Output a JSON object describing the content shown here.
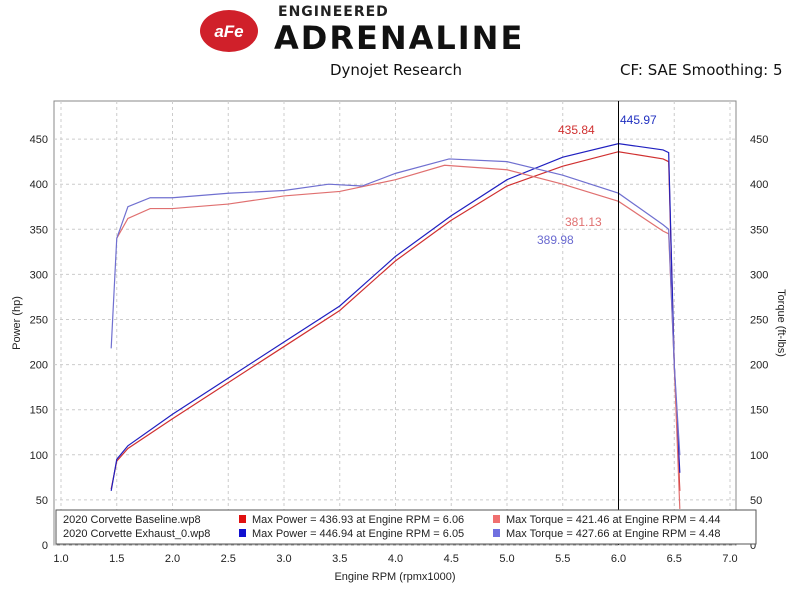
{
  "header": {
    "logo_text": "aFe POWER",
    "logo_line1": "ENGINEERED",
    "logo_line2": "ADRENALINE",
    "center": "Dynojet Research",
    "right": "CF: SAE Smoothing: 5"
  },
  "chart_data": {
    "type": "line",
    "xlabel": "Engine RPM (rpmx1000)",
    "ylabel": "Power (hp)",
    "y2label": "Torque (ft-lbs)",
    "xlim": [
      1.0,
      7.0
    ],
    "ylim": [
      0,
      480
    ],
    "y2lim": [
      0,
      480
    ],
    "xticks": [
      "1.0",
      "1.5",
      "2.0",
      "2.5",
      "3.0",
      "3.5",
      "4.0",
      "4.5",
      "5.0",
      "5.5",
      "6.0",
      "6.5",
      "7.0"
    ],
    "yticks": [
      "0",
      "50",
      "100",
      "150",
      "200",
      "250",
      "300",
      "350",
      "400",
      "450"
    ],
    "grid": true,
    "cursor_rpm": 6.0,
    "annotations": [
      {
        "text": "435.84",
        "color": "#d03030"
      },
      {
        "text": "445.97",
        "color": "#2030c0"
      },
      {
        "text": "381.13",
        "color": "#e07070"
      },
      {
        "text": "389.98",
        "color": "#6a6ad0"
      }
    ],
    "legend": [
      {
        "file": "2020 Corvette Baseline.wp8",
        "power": "Max Power = 436.93 at Engine RPM = 6.06",
        "torque": "Max Torque = 421.46 at Engine RPM = 4.44",
        "pcolor": "#e01010",
        "tcolor": "#f07070"
      },
      {
        "file": "2020 Corvette Exhaust_0.wp8",
        "power": "Max Power = 446.94 at Engine RPM = 6.05",
        "torque": "Max Torque = 427.66 at Engine RPM = 4.48",
        "pcolor": "#1010d0",
        "tcolor": "#7070e0"
      }
    ],
    "series": [
      {
        "color": "#d03030",
        "x": [
          1.45,
          1.5,
          1.6,
          2.0,
          2.5,
          3.0,
          3.5,
          4.0,
          4.5,
          5.0,
          5.5,
          6.0,
          6.4,
          6.45,
          6.5,
          6.55
        ],
        "y": [
          62,
          93,
          107,
          140,
          180,
          220,
          260,
          315,
          360,
          398,
          420,
          436,
          428,
          425,
          200,
          60
        ]
      },
      {
        "color": "#2020c0",
        "x": [
          1.45,
          1.5,
          1.6,
          2.0,
          2.5,
          3.0,
          3.5,
          4.0,
          4.5,
          5.0,
          5.5,
          6.0,
          6.4,
          6.45,
          6.5,
          6.55
        ],
        "y": [
          60,
          95,
          110,
          145,
          185,
          225,
          265,
          320,
          365,
          405,
          430,
          445,
          438,
          435,
          200,
          80
        ]
      },
      {
        "color": "#e07070",
        "x": [
          1.5,
          1.6,
          1.8,
          2.0,
          2.5,
          3.0,
          3.5,
          4.0,
          4.44,
          5.0,
          5.5,
          6.0,
          6.4,
          6.45,
          6.5,
          6.55
        ],
        "y": [
          340,
          362,
          373,
          373,
          378,
          387,
          392,
          405,
          421,
          416,
          400,
          381,
          348,
          345,
          200,
          40
        ]
      },
      {
        "color": "#7070d0",
        "x": [
          1.45,
          1.5,
          1.6,
          1.8,
          2.0,
          2.5,
          3.0,
          3.4,
          3.7,
          4.0,
          4.48,
          5.0,
          5.5,
          6.0,
          6.4,
          6.45,
          6.5,
          6.55
        ],
        "y": [
          218,
          340,
          375,
          385,
          385,
          390,
          393,
          400,
          398,
          412,
          428,
          425,
          410,
          390,
          355,
          350,
          200,
          100
        ]
      }
    ]
  }
}
